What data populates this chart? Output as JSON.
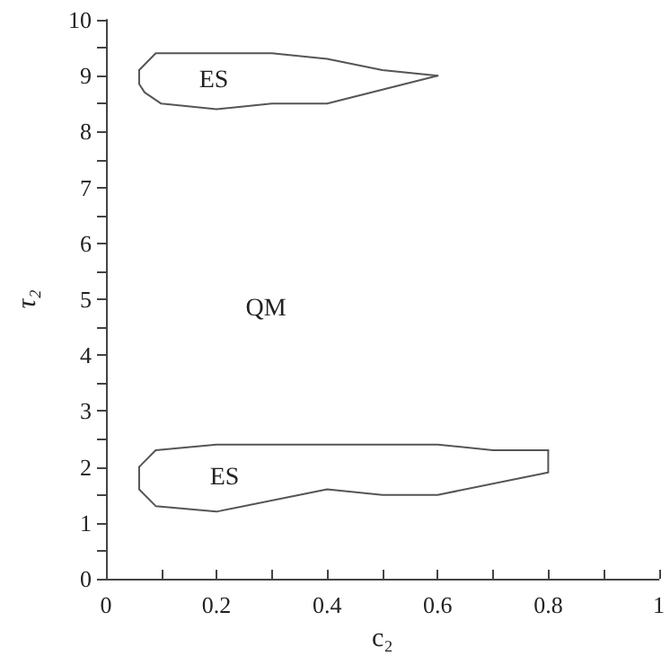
{
  "chart_data": {
    "type": "line",
    "xlabel": "c₂",
    "ylabel": "τ₂",
    "xlim": [
      0,
      1
    ],
    "ylim": [
      0,
      10
    ],
    "xticks": [
      0,
      {
        "value": 0.1,
        "label": null
      },
      0.2,
      {
        "value": 0.3,
        "label": null
      },
      0.4,
      {
        "value": 0.5,
        "label": null
      },
      0.6,
      {
        "value": 0.7,
        "label": null
      },
      0.8,
      {
        "value": 0.9,
        "label": null
      },
      1
    ],
    "yticks": [
      0,
      {
        "value": 0.5,
        "label": null
      },
      1,
      {
        "value": 1.5,
        "label": null
      },
      2,
      {
        "value": 2.5,
        "label": null
      },
      3,
      {
        "value": 3.5,
        "label": null
      },
      4,
      {
        "value": 4.5,
        "label": null
      },
      5,
      {
        "value": 5.5,
        "label": null
      },
      6,
      {
        "value": 6.5,
        "label": null
      },
      7,
      {
        "value": 7.5,
        "label": null
      },
      8,
      {
        "value": 8.5,
        "label": null
      },
      9,
      {
        "value": 9.5,
        "label": null
      },
      10
    ],
    "grid": false,
    "marker": "none",
    "line_style": "solid",
    "series": [
      {
        "color": "#555555",
        "x": [
          0.06,
          0.08,
          0.09,
          0.3,
          0.4,
          0.5,
          0.6
        ],
        "values": [
          9.1,
          9.3,
          9.4,
          9.4,
          9.3,
          9.1,
          9.0
        ]
      },
      {
        "color": "#555555",
        "x": [
          0.06,
          0.06,
          0.07,
          0.1,
          0.2,
          0.3,
          0.4,
          0.5,
          0.6
        ],
        "values": [
          9.1,
          8.85,
          8.7,
          8.5,
          8.4,
          8.5,
          8.5,
          8.75,
          9.0
        ]
      },
      {
        "color": "#555555",
        "x": [
          0.06,
          0.09,
          0.2,
          0.6,
          0.7,
          0.8
        ],
        "values": [
          2.0,
          2.3,
          2.4,
          2.4,
          2.3,
          2.3
        ]
      },
      {
        "color": "#555555",
        "x": [
          0.06,
          0.06,
          0.09,
          0.2,
          0.4,
          0.5,
          0.6,
          0.8,
          0.8
        ],
        "values": [
          2.0,
          1.6,
          1.3,
          1.2,
          1.6,
          1.5,
          1.5,
          1.9,
          2.3
        ]
      }
    ],
    "annotations": [
      "ES",
      "QM",
      "ES"
    ]
  }
}
